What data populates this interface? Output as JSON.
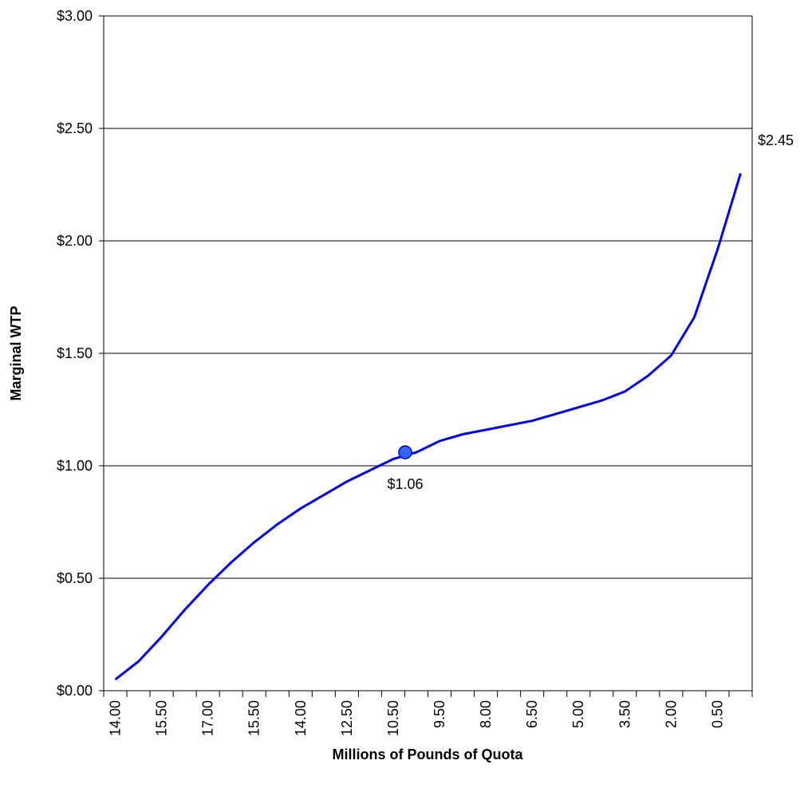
{
  "chart_data": {
    "type": "line",
    "y_label": "Marginal WTP",
    "x_label": "Millions of Pounds of Quota",
    "categories": [
      "14.00",
      null,
      "15.50",
      null,
      "17.00",
      null,
      "15.50",
      null,
      "14.00",
      null,
      "12.50",
      null,
      "10.50",
      null,
      "9.50",
      null,
      "8.00",
      null,
      "6.50",
      null,
      "5.00",
      null,
      "3.50",
      null,
      "2.00",
      null,
      "0.50",
      null
    ],
    "series": [
      {
        "color": "#0000ee",
        "values": [
          0.05,
          0.13,
          0.24,
          0.36,
          0.47,
          0.57,
          0.66,
          0.74,
          0.81,
          0.87,
          0.93,
          0.98,
          1.03,
          1.06,
          1.11,
          1.14,
          1.16,
          1.18,
          1.2,
          1.23,
          1.26,
          1.29,
          1.33,
          1.4,
          1.49,
          1.66,
          1.96,
          2.3
        ],
        "value_labels": [
          null,
          null,
          null,
          null,
          null,
          null,
          null,
          null,
          null,
          null,
          null,
          null,
          null,
          "$1.06",
          null,
          null,
          null,
          null,
          null,
          null,
          null,
          null,
          null,
          null,
          null,
          null,
          null,
          null
        ]
      }
    ],
    "annotations": [
      "$2.45"
    ],
    "ylim": [
      0,
      3
    ],
    "yticks": [
      {
        "value": 0,
        "label": "$0.00"
      },
      {
        "value": 0.5,
        "label": "$0.50"
      },
      {
        "value": 1,
        "label": "$1.00"
      },
      {
        "value": 1.5,
        "label": "$1.50"
      },
      {
        "value": 2,
        "label": "$2.00"
      },
      {
        "value": 2.5,
        "label": "$2.50"
      },
      {
        "value": 3,
        "label": "$3.00"
      }
    ],
    "grid": true
  }
}
